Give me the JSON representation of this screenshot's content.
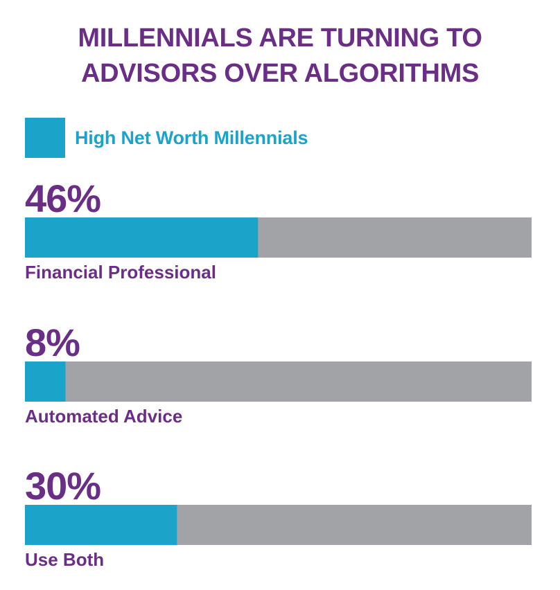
{
  "colors": {
    "accent": "#1ba3c9",
    "track": "#a2a3a6",
    "title": "#6a2e86",
    "text": "#6a2e86"
  },
  "chart_data": {
    "type": "bar",
    "orientation": "horizontal",
    "title": "MILLENNIALS ARE TURNING TO ADVISORS OVER ALGORITHMS",
    "title_lines": [
      "MILLENNIALS ARE TURNING TO",
      "ADVISORS OVER ALGORITHMS"
    ],
    "legend": "High Net Worth Millennials",
    "legend_position": "top-left",
    "series": [
      {
        "name": "High Net Worth Millennials",
        "values": [
          46,
          8,
          30
        ]
      }
    ],
    "categories": [
      "Financial Professional",
      "Automated Advice",
      "Use Both"
    ],
    "value_labels": [
      "46%",
      "8%",
      "30%"
    ],
    "xlim": [
      0,
      100
    ],
    "grid": false
  }
}
